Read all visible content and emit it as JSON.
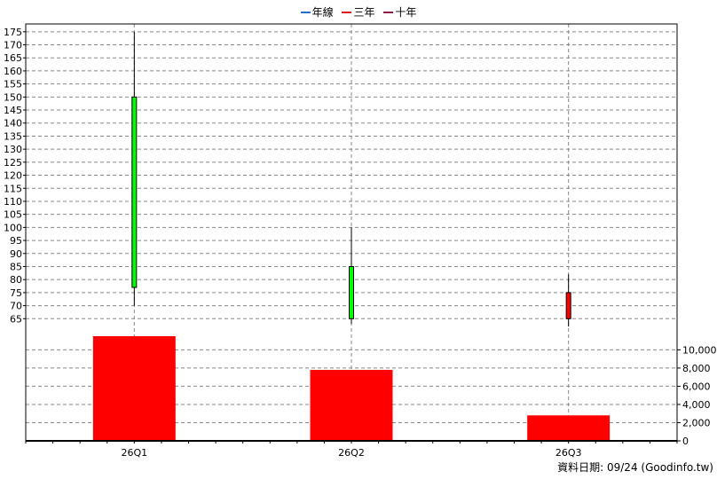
{
  "legend": [
    {
      "label": "年線",
      "color": "#1f6fd1"
    },
    {
      "label": "三年",
      "color": "#e0191f"
    },
    {
      "label": "十年",
      "color": "#8b1a4a"
    }
  ],
  "footer": "資料日期: 09/24  (Goodinfo.tw)",
  "chart_data": [
    {
      "type": "candlestick",
      "categories": [
        "26Q1",
        "26Q2",
        "26Q3"
      ],
      "series": [
        {
          "values": [
            {
              "open": 77,
              "close": 150,
              "high": 175,
              "low": 70
            },
            {
              "open": 65,
              "close": 85,
              "high": 100,
              "low": 63
            },
            {
              "open": 75,
              "close": 65,
              "high": 82,
              "low": 62
            }
          ]
        }
      ],
      "ylim": [
        60,
        178
      ],
      "yticks": [
        65,
        70,
        75,
        80,
        85,
        90,
        95,
        100,
        105,
        110,
        115,
        120,
        125,
        130,
        135,
        140,
        145,
        150,
        155,
        160,
        165,
        170,
        175
      ],
      "y_axis_side": "left",
      "up_color": "#00ff00",
      "down_color": "#ff0000",
      "grid": true
    },
    {
      "type": "bar",
      "categories": [
        "26Q1",
        "26Q2",
        "26Q3"
      ],
      "values": [
        11500,
        7800,
        2800
      ],
      "bar_color": "#ff0000",
      "ylim": [
        0,
        11500
      ],
      "yticks": [
        0,
        2000,
        4000,
        6000,
        8000,
        10000
      ],
      "ytick_labels": [
        "0",
        "2,000",
        "4,000",
        "6,000",
        "8,000",
        "10,000"
      ],
      "y_axis_side": "right",
      "grid": true
    }
  ]
}
